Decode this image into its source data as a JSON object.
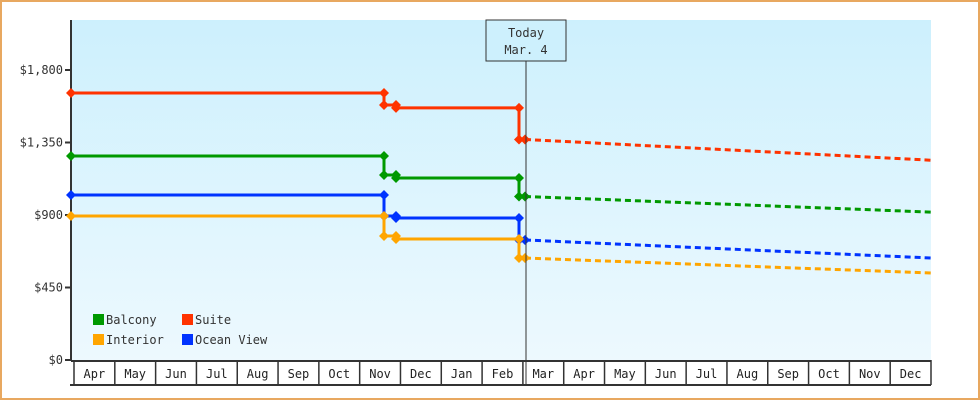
{
  "chart_data": {
    "type": "line",
    "title": "",
    "xlabel": "",
    "ylabel": "",
    "ylim": [
      0,
      2100
    ],
    "yticks": [
      {
        "value": 0,
        "label": "$0"
      },
      {
        "value": 450,
        "label": "$450"
      },
      {
        "value": 900,
        "label": "$900"
      },
      {
        "value": 1350,
        "label": "$1,350"
      },
      {
        "value": 1800,
        "label": "$1,800"
      }
    ],
    "categories": [
      "Apr",
      "May",
      "Jun",
      "Jul",
      "Aug",
      "Sep",
      "Oct",
      "Nov",
      "Dec",
      "Jan",
      "Feb",
      "Mar",
      "Apr",
      "May",
      "Jun",
      "Jul",
      "Aug",
      "Sep",
      "Oct",
      "Nov",
      "Dec"
    ],
    "today_marker": {
      "line1": "Today",
      "line2": "Mar. 4",
      "month_index": 10.2
    },
    "legend": [
      {
        "name": "Balcony",
        "color": "#009900"
      },
      {
        "name": "Suite",
        "color": "#ff3300"
      },
      {
        "name": "Interior",
        "color": "#ffa500"
      },
      {
        "name": "Ocean View",
        "color": "#0033ff"
      }
    ],
    "grid": false,
    "legend_position": "inside-bottom-left",
    "series": [
      {
        "name": "Suite",
        "color": "#ff3300",
        "historical": [
          {
            "x": 0.0,
            "y": 1657
          },
          {
            "x": 7.6,
            "y": 1657
          },
          {
            "x": 7.6,
            "y": 1583
          },
          {
            "x": 7.9,
            "y": 1583
          },
          {
            "x": 7.9,
            "y": 1565
          },
          {
            "x": 11.1,
            "y": 1565
          },
          {
            "x": 11.1,
            "y": 1369
          },
          {
            "x": 11.2,
            "y": 1369
          }
        ],
        "forecast": [
          {
            "x": 11.2,
            "y": 1369
          },
          {
            "x": 21.0,
            "y": 1240
          }
        ]
      },
      {
        "name": "Balcony",
        "color": "#009900",
        "historical": [
          {
            "x": 0.0,
            "y": 1266
          },
          {
            "x": 7.6,
            "y": 1266
          },
          {
            "x": 7.6,
            "y": 1148
          },
          {
            "x": 7.9,
            "y": 1148
          },
          {
            "x": 7.9,
            "y": 1130
          },
          {
            "x": 11.1,
            "y": 1130
          },
          {
            "x": 11.1,
            "y": 1015
          },
          {
            "x": 11.2,
            "y": 1015
          }
        ],
        "forecast": [
          {
            "x": 11.2,
            "y": 1015
          },
          {
            "x": 21.0,
            "y": 918
          }
        ]
      },
      {
        "name": "Ocean View",
        "color": "#0033ff",
        "historical": [
          {
            "x": 0.0,
            "y": 1024
          },
          {
            "x": 7.6,
            "y": 1024
          },
          {
            "x": 7.6,
            "y": 894
          },
          {
            "x": 7.9,
            "y": 894
          },
          {
            "x": 7.9,
            "y": 881
          },
          {
            "x": 11.1,
            "y": 881
          },
          {
            "x": 11.1,
            "y": 745
          },
          {
            "x": 11.2,
            "y": 745
          }
        ],
        "forecast": [
          {
            "x": 11.2,
            "y": 745
          },
          {
            "x": 21.0,
            "y": 633
          }
        ]
      },
      {
        "name": "Interior",
        "color": "#ffa500",
        "historical": [
          {
            "x": 0.0,
            "y": 894
          },
          {
            "x": 7.6,
            "y": 894
          },
          {
            "x": 7.6,
            "y": 770
          },
          {
            "x": 7.9,
            "y": 770
          },
          {
            "x": 7.9,
            "y": 751
          },
          {
            "x": 11.1,
            "y": 751
          },
          {
            "x": 11.1,
            "y": 633
          },
          {
            "x": 11.2,
            "y": 633
          }
        ],
        "forecast": [
          {
            "x": 11.2,
            "y": 633
          },
          {
            "x": 21.0,
            "y": 540
          }
        ]
      }
    ]
  },
  "colors": {
    "frame_border": "#e8a860",
    "plot_bg_top": "#cdf0fd",
    "plot_bg_bottom": "#edf9fe",
    "axis": "#333333"
  }
}
